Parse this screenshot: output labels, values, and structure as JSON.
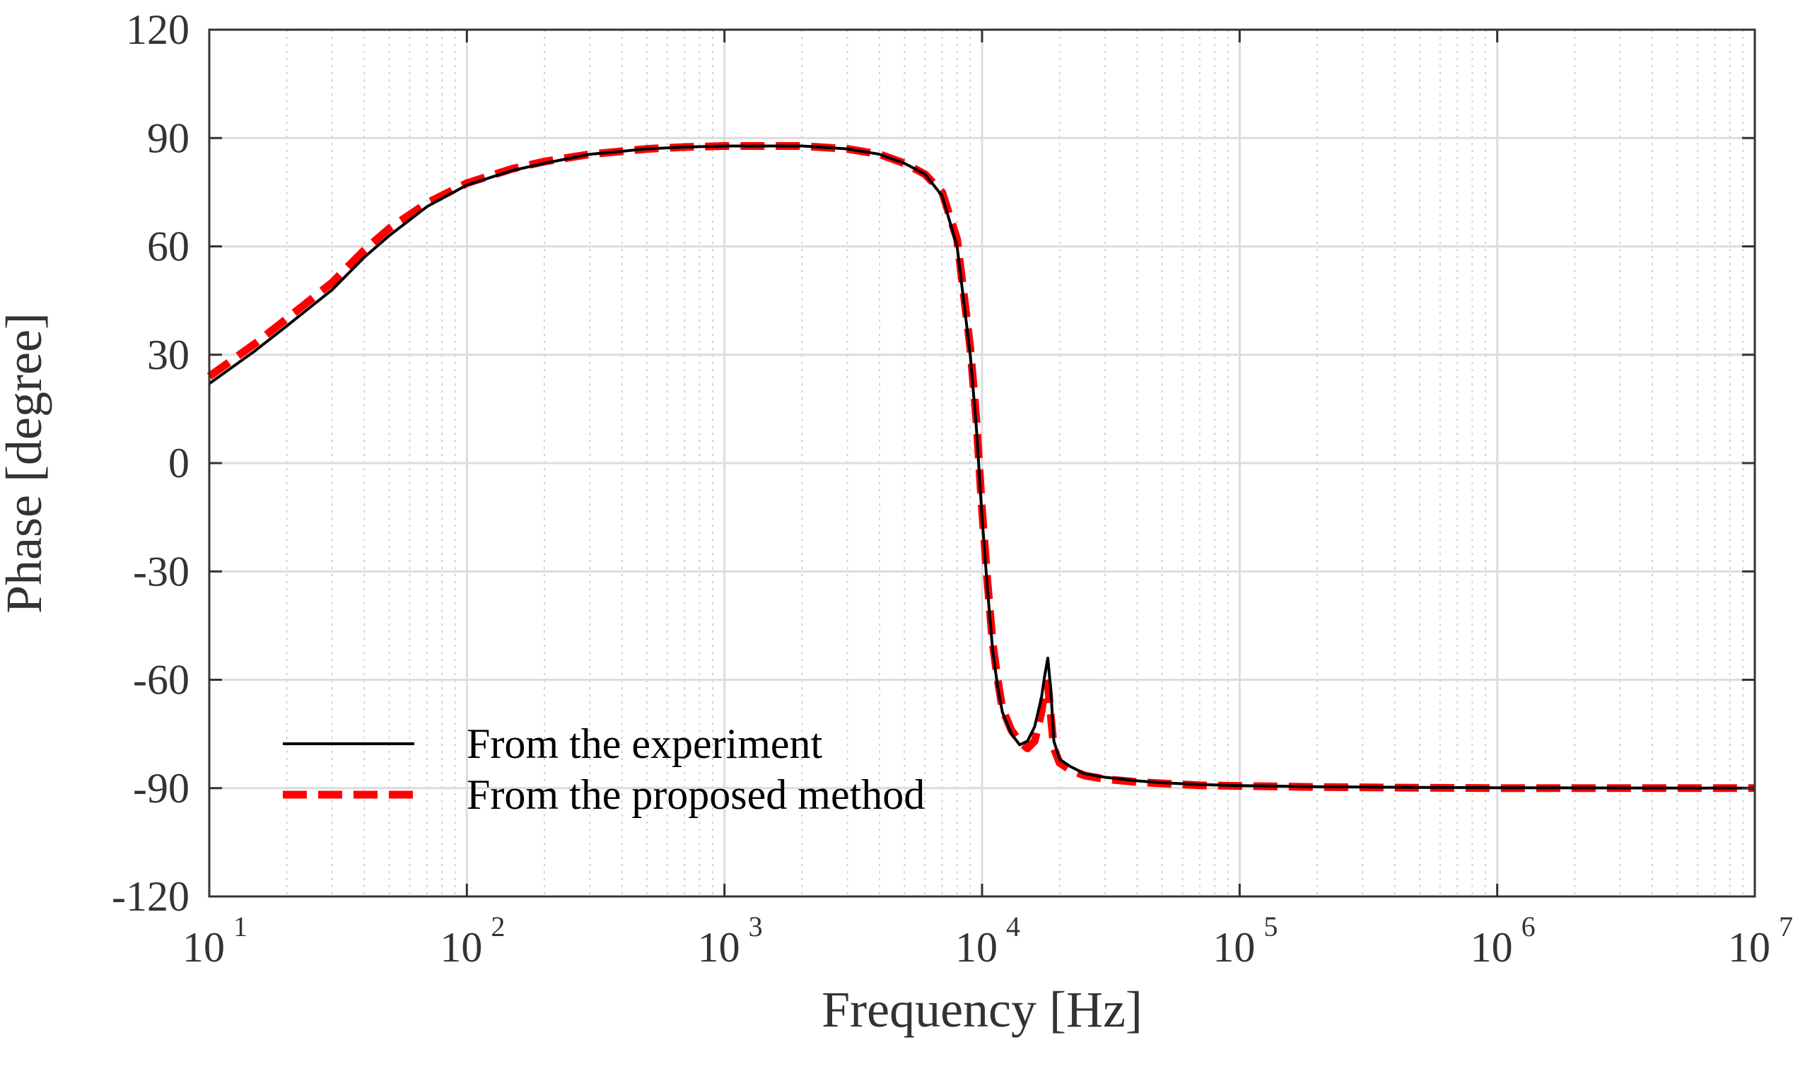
{
  "chart_data": {
    "type": "line",
    "title": "",
    "xlabel": "Frequency [Hz]",
    "ylabel": "Phase [degree]",
    "xscale": "log",
    "xlim": [
      10,
      10000000
    ],
    "ylim": [
      -120,
      120
    ],
    "grid": true,
    "x_ticks": [
      {
        "base": "10",
        "exp": "1",
        "value": 10
      },
      {
        "base": "10",
        "exp": "2",
        "value": 100
      },
      {
        "base": "10",
        "exp": "3",
        "value": 1000
      },
      {
        "base": "10",
        "exp": "4",
        "value": 10000
      },
      {
        "base": "10",
        "exp": "5",
        "value": 100000
      },
      {
        "base": "10",
        "exp": "6",
        "value": 1000000
      },
      {
        "base": "10",
        "exp": "7",
        "value": 10000000
      }
    ],
    "y_ticks": [
      {
        "label": "120",
        "value": 120
      },
      {
        "label": "90",
        "value": 90
      },
      {
        "label": "60",
        "value": 60
      },
      {
        "label": "30",
        "value": 30
      },
      {
        "label": "0",
        "value": 0
      },
      {
        "label": "-30",
        "value": -30
      },
      {
        "label": "-60",
        "value": -60
      },
      {
        "label": "-90",
        "value": -90
      },
      {
        "label": "-120",
        "value": -120
      }
    ],
    "legend_position": "bottom-left",
    "series": [
      {
        "name": "From the experiment",
        "color": "#000000",
        "style": "solid",
        "x": [
          10,
          15,
          20,
          30,
          40,
          50,
          70,
          100,
          150,
          200,
          300,
          500,
          700,
          1000,
          2000,
          3000,
          4000,
          5000,
          6000,
          7000,
          8000,
          9000,
          9500,
          10000,
          10500,
          11000,
          11500,
          12000,
          13000,
          14000,
          15000,
          16000,
          17000,
          17500,
          18000,
          18500,
          19000,
          20000,
          22000,
          25000,
          30000,
          40000,
          50000,
          70000,
          100000,
          200000,
          500000,
          1000000,
          10000000
        ],
        "y": [
          22,
          31,
          38,
          48,
          57,
          63,
          71,
          77,
          81,
          83,
          85.5,
          87,
          87.5,
          87.8,
          87.8,
          87,
          85.5,
          83,
          80,
          74,
          60,
          30,
          10,
          -15,
          -35,
          -52,
          -62,
          -69,
          -75,
          -78,
          -77,
          -73,
          -65,
          -59,
          -54,
          -63,
          -77,
          -82,
          -84,
          -86,
          -87,
          -88,
          -88.5,
          -89,
          -89.3,
          -89.6,
          -89.8,
          -89.9,
          -90
        ]
      },
      {
        "name": "From the proposed method",
        "color": "#ff0000",
        "style": "dashed",
        "x": [
          10,
          15,
          20,
          30,
          40,
          50,
          70,
          100,
          150,
          200,
          300,
          500,
          700,
          1000,
          2000,
          3000,
          4000,
          5000,
          6000,
          7000,
          8000,
          9000,
          9500,
          10000,
          10500,
          11000,
          11500,
          12000,
          13000,
          14000,
          15000,
          16000,
          17000,
          17500,
          18000,
          18500,
          19000,
          20000,
          22000,
          25000,
          30000,
          40000,
          50000,
          70000,
          100000,
          200000,
          500000,
          1000000,
          10000000
        ],
        "y": [
          24,
          33,
          40,
          50,
          59,
          65,
          72,
          77.5,
          81.5,
          83.5,
          85.5,
          87,
          87.5,
          87.8,
          87.8,
          87,
          85.5,
          83,
          80,
          75,
          62,
          32,
          12,
          -13,
          -33,
          -50,
          -60,
          -68,
          -74,
          -77,
          -79,
          -77,
          -69,
          -63,
          -61,
          -70,
          -79,
          -83,
          -85,
          -86.5,
          -87.5,
          -88.3,
          -88.7,
          -89.2,
          -89.4,
          -89.7,
          -89.9,
          -90,
          -90
        ]
      }
    ]
  }
}
